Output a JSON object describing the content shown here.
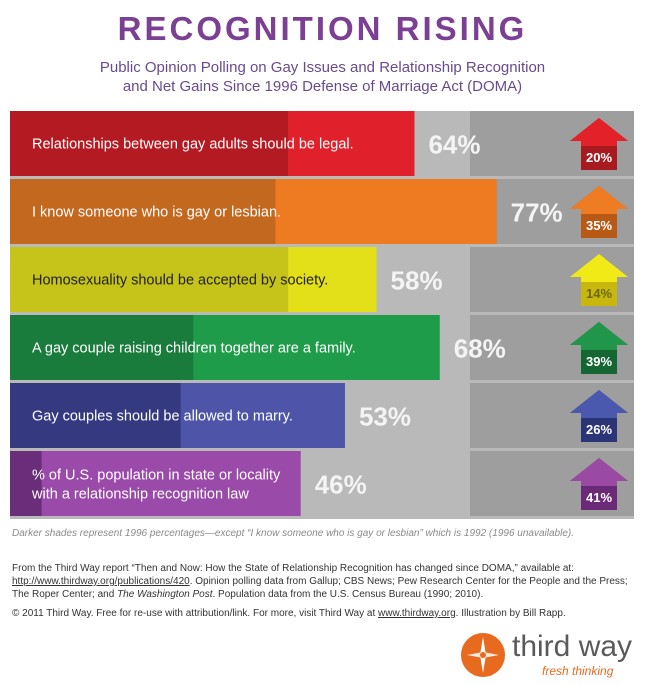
{
  "header": {
    "title": "RECOGNITION RISING",
    "subtitle_line1": "Public Opinion Polling on Gay Issues and Relationship Recognition",
    "subtitle_line2": "and Net Gains Since 1996 Defense of Marriage Act (DOMA)"
  },
  "chart_data": {
    "type": "bar",
    "orientation": "horizontal",
    "value_unit": "%",
    "xlim": [
      0,
      100
    ],
    "grid": false,
    "categories": [
      "Relationships between gay adults should be legal.",
      "I know someone who is gay or lesbian.",
      "Homosexuality should be accepted by society.",
      "A gay couple raising children together are a family.",
      "Gay couples should be allowed to marry.",
      "% of U.S. population in state or locality with a relationship recognition law"
    ],
    "current": [
      64,
      77,
      58,
      68,
      53,
      46
    ],
    "baseline_1996": [
      44,
      42,
      44,
      29,
      27,
      5
    ],
    "net_gain": [
      20,
      35,
      14,
      39,
      26,
      41
    ],
    "value_labels": [
      "64%",
      "77%",
      "58%",
      "68%",
      "53%",
      "46%"
    ],
    "gain_labels": [
      "20%",
      "35%",
      "14%",
      "39%",
      "26%",
      "41%"
    ],
    "colors": {
      "light": [
        "#e0202a",
        "#ee7a22",
        "#e3df18",
        "#1f9c49",
        "#4e54a8",
        "#9a4aa8"
      ],
      "dark": [
        "#b41a22",
        "#c2681f",
        "#c6c31a",
        "#1a7c3c",
        "#353a80",
        "#6a2d7a"
      ],
      "arrow_light": [
        "#e32128",
        "#ef7b23",
        "#f2ea16",
        "#1f9649",
        "#4a58ad",
        "#9b4aa3"
      ],
      "arrow_dark": [
        "#a81a20",
        "#b85a16",
        "#c8b80e",
        "#146632",
        "#2c3478",
        "#6a2a78"
      ],
      "arrow_text": [
        "#ffffff",
        "#ffffff",
        "#6b6a10",
        "#ffffff",
        "#ffffff",
        "#ffffff"
      ]
    }
  },
  "footer": {
    "note": "Darker shades represent 1996 percentages—except “I know someone who is gay or lesbian” which is 1992 (1996 unavailable).",
    "source_a": "From the Third Way report “Then and Now: How the State of Relationship Recognition has changed since DOMA,” available at: ",
    "source_link": "http://www.thirdway.org/publications/420",
    "source_b": ". Opinion polling data from Gallup; CBS News; Pew Research Center for the People and the Press; The Roper Center; and ",
    "source_italic": "The Washington Post",
    "source_c": ". Population data from the U.S. Census Bureau (1990; 2010).",
    "copyright_a": "© 2011 Third Way. Free for re-use with attribution/link. For more, visit Third Way at ",
    "copyright_link": "www.thirdway.org",
    "copyright_b": ". Illustration by Bill Rapp."
  },
  "logo": {
    "name": "third way",
    "tagline": "fresh thinking",
    "icon": "compass-logo-icon",
    "color": "#e86a1e"
  }
}
